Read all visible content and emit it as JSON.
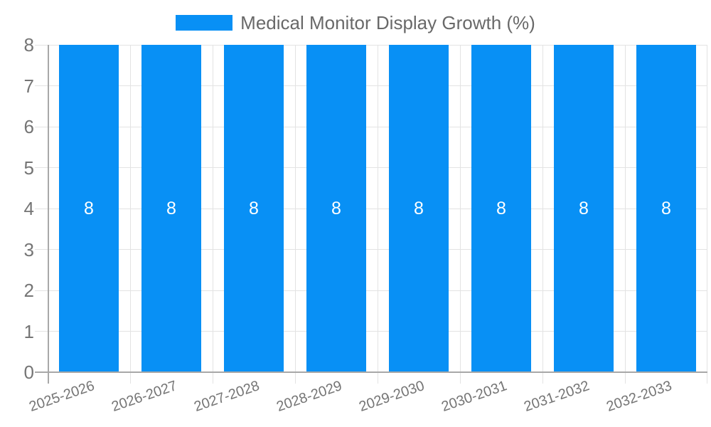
{
  "legend": {
    "label": "Medical Monitor Display Growth (%)"
  },
  "chart_data": {
    "type": "bar",
    "title": "Medical Monitor Display Growth (%)",
    "categories": [
      "2025-2026",
      "2026-2027",
      "2027-2028",
      "2028-2029",
      "2029-2030",
      "2030-2031",
      "2031-2032",
      "2032-2033"
    ],
    "series": [
      {
        "name": "Medical Monitor Display Growth (%)",
        "values": [
          8,
          8,
          8,
          8,
          8,
          8,
          8,
          8
        ]
      }
    ],
    "bar_value_labels": [
      "8",
      "8",
      "8",
      "8",
      "8",
      "8",
      "8",
      "8"
    ],
    "xlabel": "",
    "ylabel": "",
    "ylim": [
      0,
      8
    ],
    "yticks": [
      0,
      1,
      2,
      3,
      4,
      5,
      6,
      7,
      8
    ],
    "grid": true,
    "legend_position": "top-center",
    "x_label_rotation_deg": -19
  },
  "colors": {
    "bar": "#0890f5",
    "bar_label": "#ffffff",
    "grid": "#e3e3e3",
    "axis": "#a8a8a8",
    "tick_text": "#757575",
    "legend_text": "#696969",
    "background": "#ffffff"
  }
}
